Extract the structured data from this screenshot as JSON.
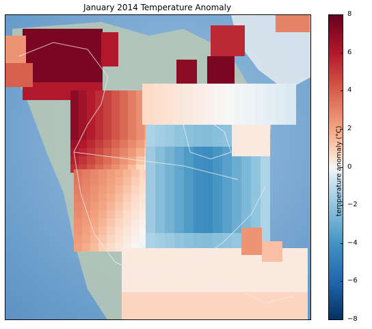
{
  "title": "January 2014 Temperature Anomaly",
  "colorbar": {
    "label": "temperature anomaly (°C)",
    "ticks": [
      "8",
      "6",
      "4",
      "2",
      "0",
      "−2",
      "−4",
      "−6",
      "−8"
    ],
    "range": [
      -8,
      8
    ]
  },
  "colors": {
    "ocean": "#7aaad4",
    "land": "#c9d3c2",
    "ice": "#e8eef2",
    "coastline": "#e8e8e8"
  }
}
